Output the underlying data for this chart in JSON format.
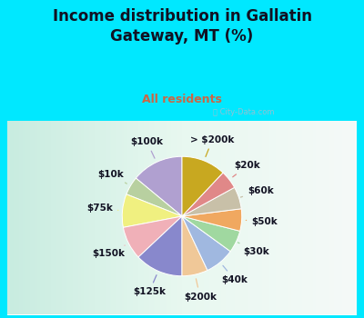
{
  "title": "Income distribution in Gallatin\nGateway, MT (%)",
  "subtitle": "All residents",
  "background_top": "#00e8ff",
  "background_chart_gradient": [
    "#e8f5f0",
    "#d0ede0"
  ],
  "labels": [
    "$100k",
    "$10k",
    "$75k",
    "$150k",
    "$125k",
    "$200k",
    "$40k",
    "$30k",
    "$50k",
    "$60k",
    "$20k",
    "> $200k"
  ],
  "values": [
    14,
    5,
    9,
    9,
    13,
    7,
    8,
    6,
    6,
    6,
    5,
    12
  ],
  "colors": [
    "#b0a0d0",
    "#b8d0a0",
    "#f0f080",
    "#f0b0b8",
    "#8888cc",
    "#f0c898",
    "#a0b8e0",
    "#a0d8a0",
    "#f0a860",
    "#c8c0a8",
    "#e08888",
    "#c8a820"
  ],
  "wedge_edge_color": "white",
  "label_fontsize": 7.5,
  "title_fontsize": 12,
  "subtitle_fontsize": 9,
  "title_color": "#111122",
  "subtitle_color": "#cc6644"
}
